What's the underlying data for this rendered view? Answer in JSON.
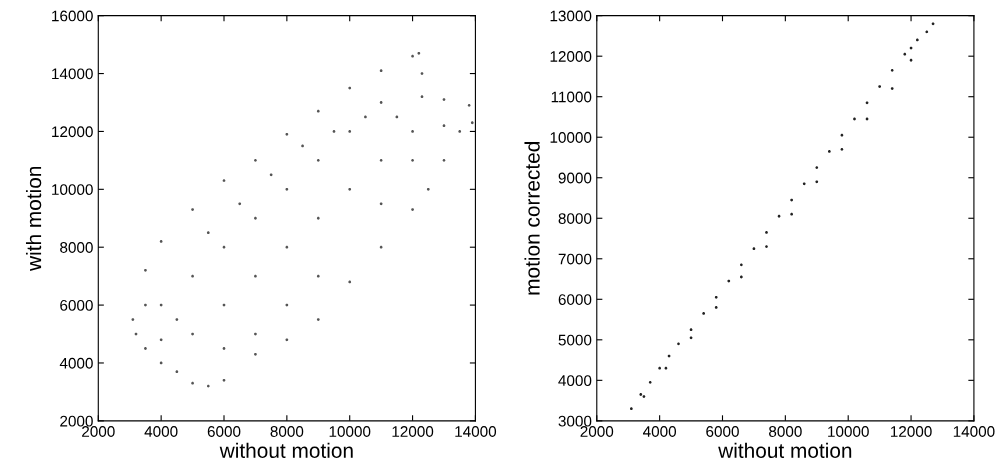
{
  "chart_data": [
    {
      "type": "scatter",
      "xlabel": "without motion",
      "ylabel": "with motion",
      "xlim": [
        2000,
        14000
      ],
      "ylim": [
        2000,
        16000
      ],
      "xticks": [
        2000,
        4000,
        6000,
        8000,
        10000,
        12000,
        14000
      ],
      "yticks": [
        2000,
        4000,
        6000,
        8000,
        10000,
        12000,
        14000,
        16000
      ],
      "marker": "circle",
      "grid": false,
      "series": [
        {
          "color": "#555555",
          "x": [
            3100,
            3200,
            3500,
            4000,
            5000,
            6000,
            7000,
            8000,
            9000,
            10000,
            11000,
            12000,
            12200,
            12300,
            12300,
            13000,
            13800,
            13900,
            13500,
            13000,
            12500,
            12000,
            11000,
            10000,
            9000,
            8000,
            7000,
            6000,
            5500,
            5000,
            4500,
            4000,
            3500,
            4000,
            5000,
            5000,
            6000,
            6000,
            7000,
            7000,
            8000,
            8000,
            9000,
            9000,
            10000,
            10000,
            11000,
            11000,
            12000,
            12000,
            11000,
            9000,
            8000,
            7000,
            6000,
            4500,
            5500,
            6500,
            7500,
            8500,
            9500,
            10500,
            11500,
            13000,
            4000,
            3500
          ],
          "values": [
            5500,
            5000,
            7200,
            8200,
            9300,
            10300,
            11000,
            11900,
            12700,
            13500,
            14100,
            14600,
            14700,
            14000,
            13200,
            13100,
            12900,
            12300,
            12000,
            11000,
            10000,
            9300,
            8000,
            6800,
            5500,
            4800,
            4300,
            3400,
            3200,
            3300,
            3700,
            4000,
            4500,
            6000,
            5000,
            7000,
            6000,
            8000,
            7000,
            9000,
            8000,
            10000,
            9000,
            11000,
            10000,
            12000,
            11000,
            13000,
            12000,
            11000,
            9500,
            7000,
            6000,
            5000,
            4500,
            5500,
            8500,
            9500,
            10500,
            11500,
            12000,
            12500,
            12500,
            12200,
            4800,
            6000
          ]
        }
      ]
    },
    {
      "type": "scatter",
      "xlabel": "without motion",
      "ylabel": "motion corrected",
      "xlim": [
        2000,
        14000
      ],
      "ylim": [
        3000,
        13000
      ],
      "xticks": [
        2000,
        4000,
        6000,
        8000,
        10000,
        12000,
        14000
      ],
      "yticks": [
        3000,
        4000,
        5000,
        6000,
        7000,
        8000,
        9000,
        10000,
        11000,
        12000,
        13000
      ],
      "marker": "circle",
      "grid": false,
      "series": [
        {
          "color": "#222222",
          "x": [
            3100,
            3400,
            3700,
            4000,
            4300,
            4600,
            5000,
            5400,
            5800,
            6200,
            6600,
            7000,
            7400,
            7800,
            8200,
            8600,
            9000,
            9400,
            9800,
            10200,
            10600,
            11000,
            11400,
            11800,
            12000,
            12200,
            12500,
            12700,
            3500,
            4200,
            5000,
            5800,
            6600,
            7400,
            8200,
            9000,
            9800,
            10600,
            11400,
            12000
          ],
          "values": [
            3300,
            3650,
            3950,
            4300,
            4600,
            4900,
            5250,
            5650,
            6050,
            6450,
            6850,
            7250,
            7650,
            8050,
            8450,
            8850,
            9250,
            9650,
            10050,
            10450,
            10850,
            11250,
            11650,
            12050,
            12200,
            12400,
            12600,
            12800,
            3600,
            4300,
            5050,
            5800,
            6550,
            7300,
            8100,
            8900,
            9700,
            10450,
            11200,
            11900
          ]
        }
      ]
    }
  ]
}
